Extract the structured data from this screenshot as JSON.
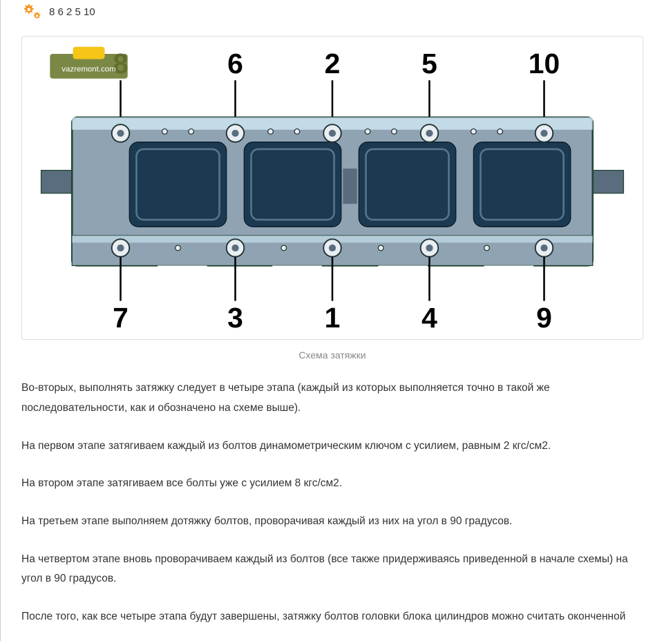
{
  "top": {
    "sequence_text": "8 6 2 5 10"
  },
  "figure": {
    "caption": "Схема затяжки",
    "top_labels": [
      "8",
      "6",
      "2",
      "5",
      "10"
    ],
    "bottom_labels": [
      "7",
      "3",
      "1",
      "4",
      "9"
    ],
    "label_fontsize": 32,
    "label_color": "#000000",
    "line_color": "#000000",
    "engine_fill": "#8fa3b3",
    "engine_shadow": "#5a6d7e",
    "engine_light": "#cfe8f4",
    "engine_cavity": "#1b3a52",
    "bolt_fill": "#e8eef2",
    "bolt_stroke": "#233",
    "background": "#ffffff",
    "watermark": "vazremont.com"
  },
  "paragraphs": [
    "Во-вторых, выполнять затяжку следует в четыре этапа (каждый из которых выполняется точно в такой же последовательности, как и обозначено на схеме выше).",
    "На первом этапе затягиваем каждый из болтов динамометрическим ключом с усилием, равным 2 кгс/см2.",
    "На втором этапе затягиваем все болты уже с усилием 8 кгс/см2.",
    "На третьем этапе выполняем дотяжку болтов, проворачивая каждый из них на угол в 90 градусов.",
    "На четвертом этапе вновь проворачиваем каждый из болтов (все также придерживаясь приведенной в начале схемы) на угол в 90 градусов.",
    "После того, как все четыре этапа будут завершены, затяжку болтов головки блока цилиндров можно считать оконченной"
  ],
  "colors": {
    "accent": "#f7941e",
    "text": "#333333",
    "muted": "#888888",
    "border": "#dddddd"
  }
}
